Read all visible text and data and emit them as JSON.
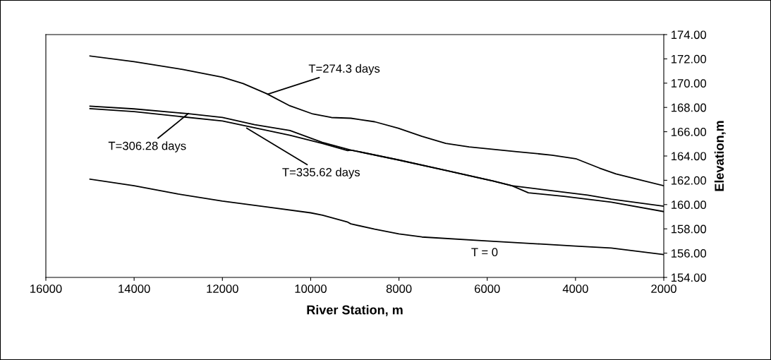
{
  "chart_data": {
    "type": "line",
    "xlabel": "River Station, m",
    "ylabel": "Elevation,m",
    "xlim": [
      16000,
      2000
    ],
    "xticks": [
      16000,
      14000,
      12000,
      10000,
      8000,
      6000,
      4000,
      2000
    ],
    "ylim": [
      154,
      174
    ],
    "yticks": [
      {
        "value": 154,
        "label": "154.00"
      },
      {
        "value": 156,
        "label": "156.00"
      },
      {
        "value": 158,
        "label": "158.00"
      },
      {
        "value": 160,
        "label": "160.00"
      },
      {
        "value": 162,
        "label": "162.00"
      },
      {
        "value": 164,
        "label": "164.00"
      },
      {
        "value": 166,
        "label": "166.00"
      },
      {
        "value": 168,
        "label": "168.00"
      },
      {
        "value": 170,
        "label": "170.00"
      },
      {
        "value": 172,
        "label": "172.00"
      },
      {
        "value": 174,
        "label": "174.00"
      }
    ],
    "grid": false,
    "legend": false,
    "marker": "none",
    "line_style": "solid",
    "series": [
      {
        "color": "#000000",
        "x": [
          15000,
          14000,
          12900,
          12000,
          11530,
          11000,
          10470,
          9950,
          9530,
          9090,
          8550,
          8016,
          7480,
          6940,
          6410,
          5335,
          4530,
          3995,
          3460,
          3083,
          2000
        ],
        "values": [
          172.24,
          171.77,
          171.13,
          170.49,
          169.97,
          169.14,
          168.13,
          167.46,
          167.17,
          167.11,
          166.82,
          166.29,
          165.62,
          165.04,
          164.75,
          164.36,
          164.07,
          163.78,
          163.01,
          162.52,
          161.55
        ]
      },
      {
        "color": "#000000",
        "x": [
          15000,
          14000,
          12800,
          12000,
          11270,
          10470,
          9740,
          9090,
          8016,
          6940,
          5870,
          5440,
          5067,
          4263,
          3190,
          2000
        ],
        "values": [
          168.1,
          167.88,
          167.49,
          167.17,
          166.58,
          166.1,
          165.13,
          164.49,
          163.68,
          162.81,
          161.94,
          161.55,
          160.97,
          160.68,
          160.2,
          159.42
        ]
      },
      {
        "color": "#000000",
        "x": [
          15000,
          14000,
          12000,
          10470,
          9740,
          9160,
          9090,
          8016,
          6940,
          5870,
          5440,
          4800,
          3727,
          3190,
          2000
        ],
        "values": [
          167.9,
          167.65,
          166.88,
          165.71,
          165.04,
          164.45,
          164.49,
          163.68,
          162.81,
          161.94,
          161.55,
          161.26,
          160.78,
          160.45,
          159.87
        ]
      },
      {
        "color": "#000000",
        "x": [
          15000,
          14000,
          13000,
          12000,
          11000,
          10000,
          9730,
          9160,
          9090,
          8550,
          8000,
          7480,
          6000,
          4800,
          4000,
          3190,
          2000
        ],
        "values": [
          162.09,
          161.55,
          160.87,
          160.29,
          159.81,
          159.32,
          159.13,
          158.55,
          158.41,
          157.97,
          157.58,
          157.33,
          157.0,
          156.75,
          156.58,
          156.42,
          155.88
        ]
      }
    ],
    "annotations": [
      {
        "text": "T=274.3 days",
        "x": 10970,
        "y": 169.1
      },
      {
        "text": "T=306.28 days",
        "x": 12770,
        "y": 167.5
      },
      {
        "text": "T=335.62 days",
        "x": 11450,
        "y": 166.3
      },
      "T = 0"
    ]
  }
}
